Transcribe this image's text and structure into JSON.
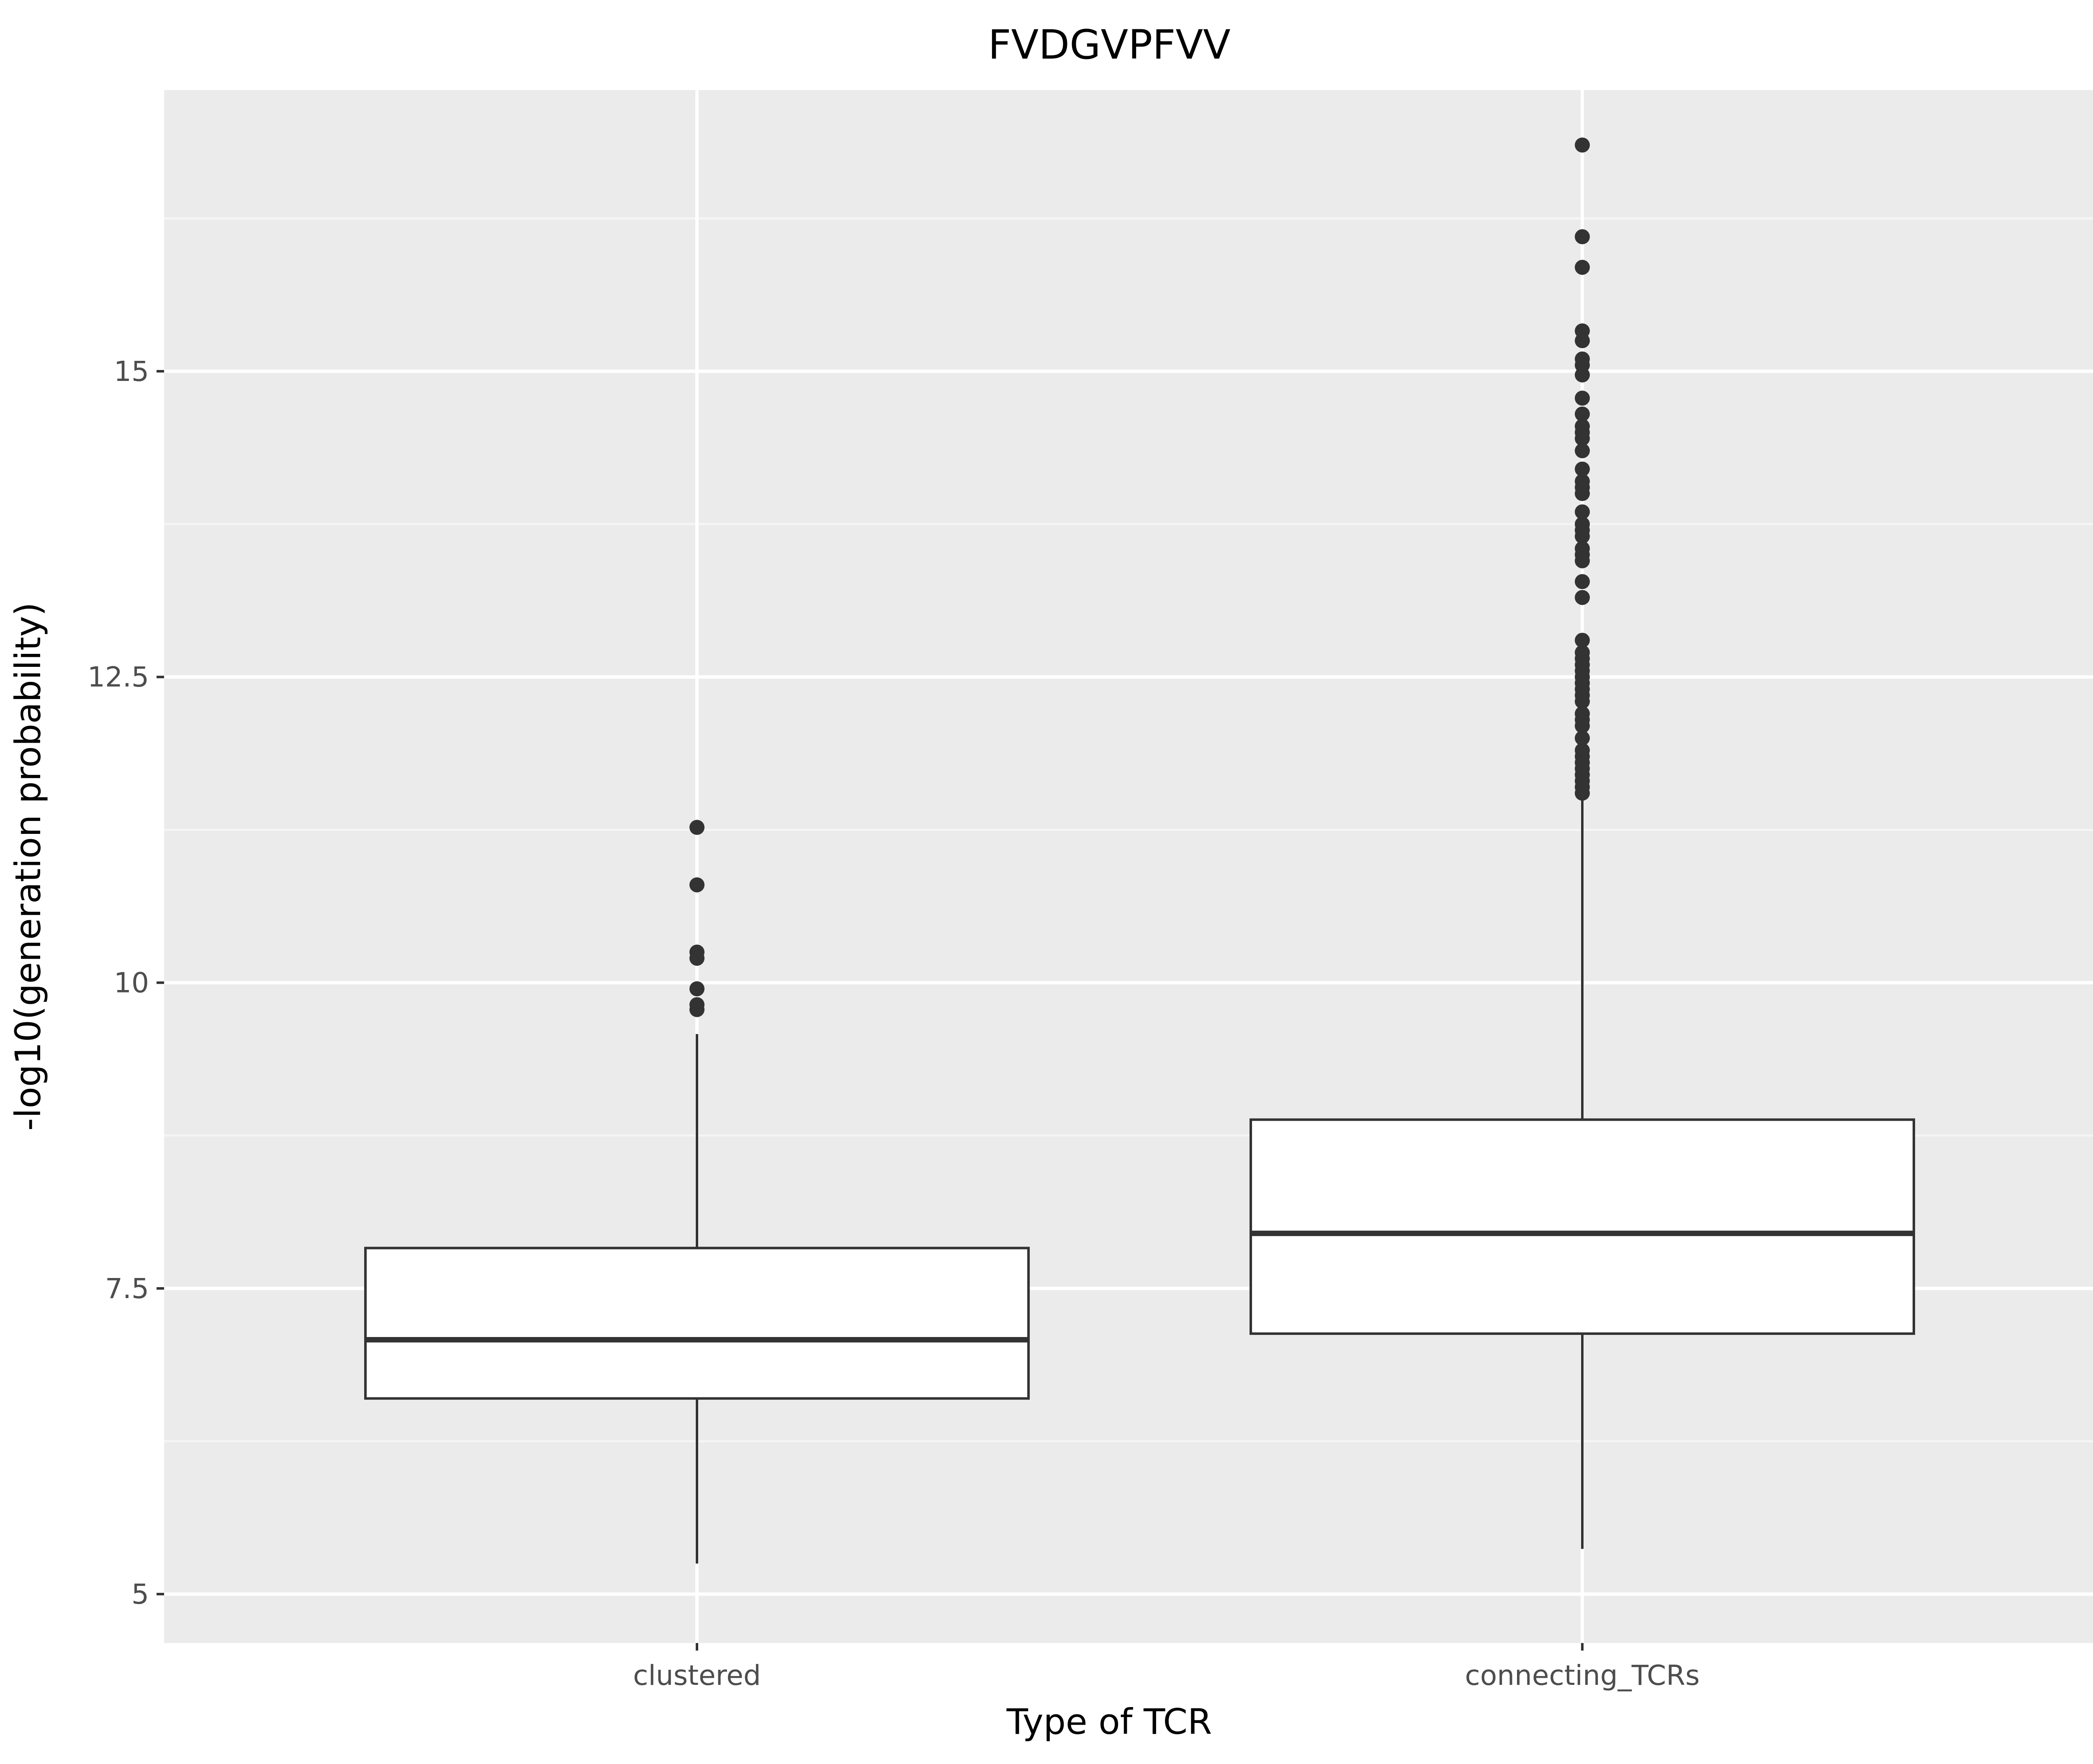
{
  "chart_data": {
    "type": "box",
    "title": "FVDGVPFVV",
    "xlabel": "Type of TCR",
    "ylabel": "-log10(generation probability)",
    "ylim": [
      4.6,
      17.3
    ],
    "yticks": [
      5,
      7.5,
      10,
      12.5,
      15
    ],
    "ytick_labels": [
      "5",
      "7.5",
      "10",
      "12.5",
      "15"
    ],
    "grid": true,
    "legend": "none",
    "categories": [
      "clustered",
      "connecting_TCRs"
    ],
    "boxes": [
      {
        "category": "clustered",
        "whisker_low": 5.25,
        "q1": 6.6,
        "median": 7.08,
        "q3": 7.83,
        "whisker_high": 9.58,
        "outliers": [
          9.78,
          9.82,
          9.95,
          10.2,
          10.25,
          10.8,
          11.27
        ]
      },
      {
        "category": "connecting_TCRs",
        "whisker_low": 5.37,
        "q1": 7.13,
        "median": 7.95,
        "q3": 8.88,
        "whisker_high": 11.52,
        "outliers": [
          11.55,
          11.6,
          11.65,
          11.7,
          11.75,
          11.8,
          11.85,
          11.9,
          12.0,
          12.1,
          12.15,
          12.2,
          12.3,
          12.35,
          12.4,
          12.45,
          12.5,
          12.55,
          12.6,
          12.65,
          12.7,
          12.8,
          13.15,
          13.28,
          13.45,
          13.5,
          13.55,
          13.65,
          13.7,
          13.75,
          13.85,
          14.0,
          14.05,
          14.1,
          14.2,
          14.35,
          14.45,
          14.5,
          14.55,
          14.65,
          14.78,
          14.97,
          15.05,
          15.1,
          15.25,
          15.33,
          15.85,
          16.1,
          16.85
        ]
      }
    ],
    "colors": {
      "panel_background": "#ebebeb",
      "grid_major": "#ffffff",
      "grid_minor": "#f5f5f5",
      "box_fill": "#ffffff",
      "box_stroke": "#333333",
      "point": "#333333",
      "tick_text": "#4d4d4d"
    }
  }
}
